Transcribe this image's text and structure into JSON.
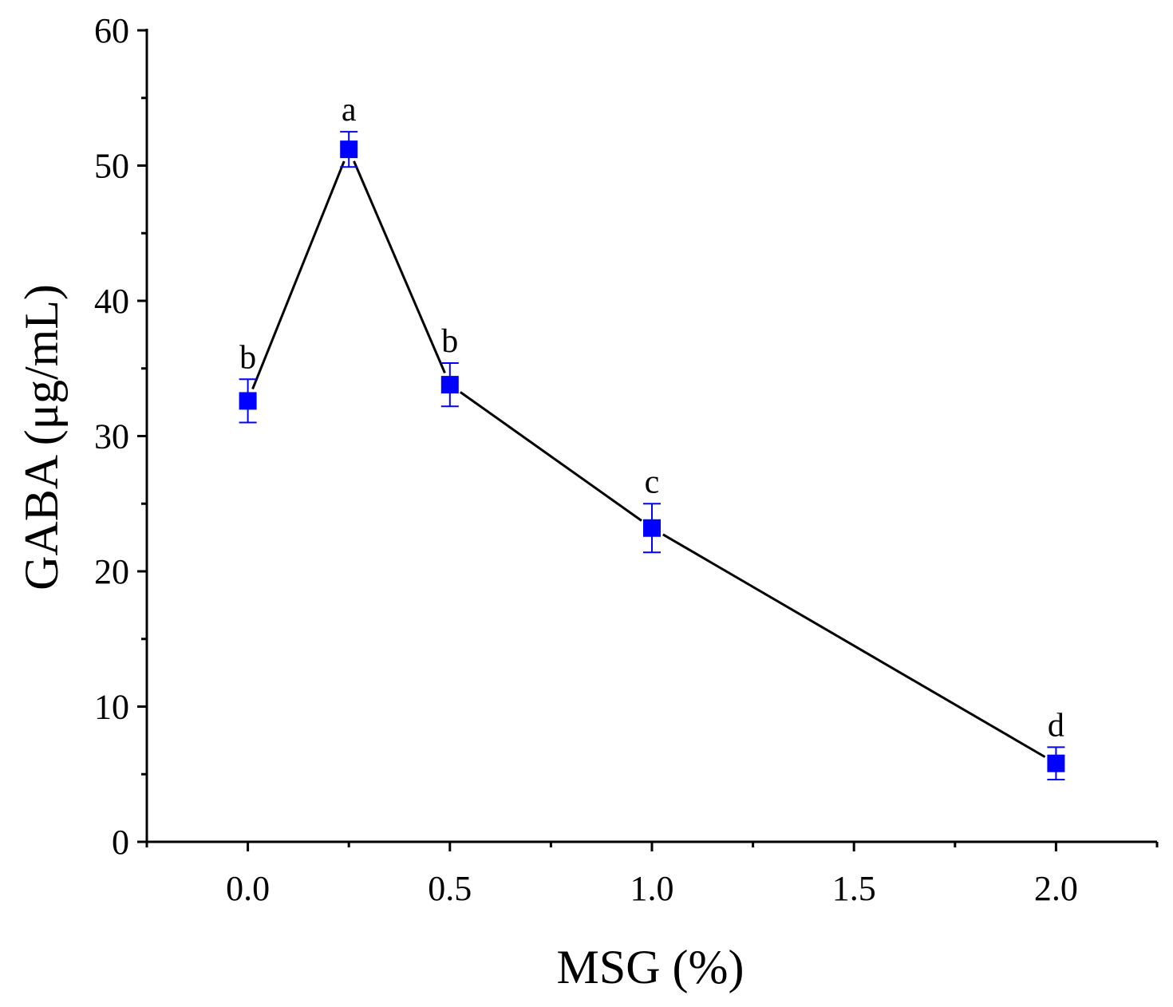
{
  "chart_data": {
    "type": "line",
    "title": "",
    "xlabel": "MSG (%)",
    "ylabel": "GABA (μg/mL)",
    "xlim": [
      -0.25,
      2.25
    ],
    "ylim": [
      0,
      60
    ],
    "x_ticks": [
      0.0,
      0.5,
      1.0,
      1.5,
      2.0
    ],
    "x_tick_labels": [
      "0.0",
      "0.5",
      "1.0",
      "1.5",
      "2.0"
    ],
    "y_ticks": [
      0,
      10,
      20,
      30,
      40,
      50,
      60
    ],
    "y_tick_labels": [
      "0",
      "10",
      "20",
      "30",
      "40",
      "50",
      "60"
    ],
    "grid": false,
    "series": [
      {
        "name": "GABA",
        "color": "#0000ff",
        "line_color": "#000000",
        "marker": "square",
        "x": [
          0.0,
          0.25,
          0.5,
          1.0,
          2.0
        ],
        "y": [
          32.6,
          51.2,
          33.8,
          23.2,
          5.8
        ],
        "error": [
          1.6,
          1.3,
          1.6,
          1.8,
          1.2
        ],
        "significance": [
          "b",
          "a",
          "b",
          "c",
          "d"
        ]
      }
    ]
  }
}
